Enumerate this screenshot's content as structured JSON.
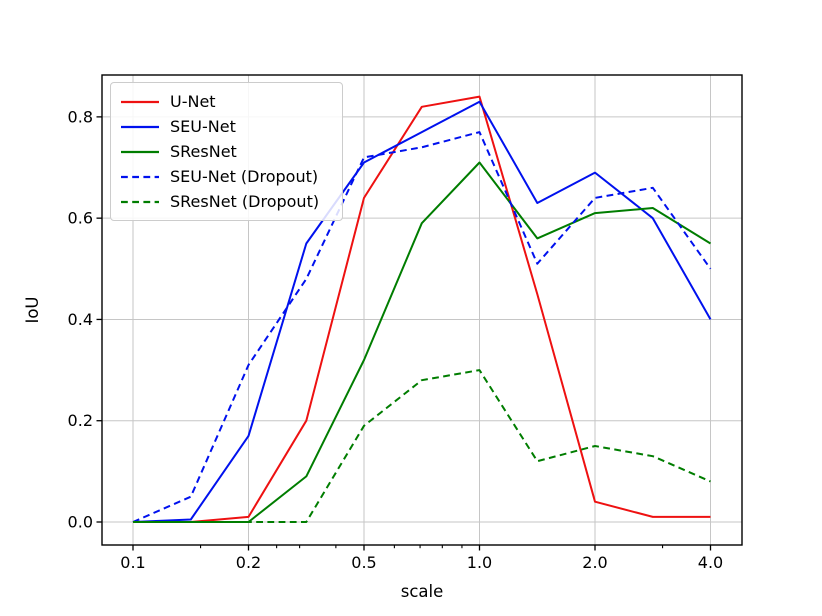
{
  "chart_data": {
    "type": "line",
    "title": "",
    "xlabel": "scale",
    "ylabel": "IoU",
    "x_scale": "log-like (ticks 0.1,0.2,0.5,1,2,4 equally spaced, data points equally spaced by index)",
    "grid": true,
    "legend_position": "upper left",
    "x": [
      0.1,
      0.15,
      0.2,
      0.3,
      0.5,
      0.7,
      1.0,
      1.5,
      2.0,
      3.0,
      4.0
    ],
    "x_ticks": [
      0.1,
      0.2,
      0.5,
      1.0,
      2.0,
      4.0
    ],
    "x_tick_labels": [
      "0.1",
      "0.2",
      "0.5",
      "1.0",
      "2.0",
      "4.0"
    ],
    "x_minor_ticks": [
      0.15,
      0.25,
      0.3,
      0.4,
      0.6,
      0.7,
      0.8,
      0.9,
      3.0
    ],
    "y_ticks": [
      0.0,
      0.2,
      0.4,
      0.6,
      0.8
    ],
    "y_tick_labels": [
      "0.0",
      "0.2",
      "0.4",
      "0.6",
      "0.8"
    ],
    "ylim": [
      -0.045,
      0.883
    ],
    "series": [
      {
        "name": "U-Net",
        "color": "#ee1111",
        "dash": "solid",
        "values": [
          0.0,
          0.0,
          0.01,
          0.2,
          0.64,
          0.82,
          0.84,
          0.45,
          0.04,
          0.01,
          0.01
        ]
      },
      {
        "name": "SEU-Net",
        "color": "#0011ee",
        "dash": "solid",
        "values": [
          0.0,
          0.005,
          0.17,
          0.55,
          0.71,
          0.77,
          0.83,
          0.63,
          0.69,
          0.6,
          0.4
        ]
      },
      {
        "name": "SResNet",
        "color": "#007d00",
        "dash": "solid",
        "values": [
          0.0,
          0.0,
          0.0,
          0.09,
          0.32,
          0.59,
          0.71,
          0.56,
          0.61,
          0.62,
          0.55
        ]
      },
      {
        "name": "SEU-Net (Dropout)",
        "color": "#0011ee",
        "dash": "dashed",
        "values": [
          0.0,
          0.05,
          0.31,
          0.48,
          0.72,
          0.74,
          0.77,
          0.51,
          0.64,
          0.66,
          0.5
        ]
      },
      {
        "name": "SResNet (Dropout)",
        "color": "#007d00",
        "dash": "dashed",
        "values": [
          0.0,
          0.0,
          0.0,
          0.0,
          0.19,
          0.28,
          0.3,
          0.12,
          0.15,
          0.13,
          0.08
        ]
      }
    ]
  }
}
